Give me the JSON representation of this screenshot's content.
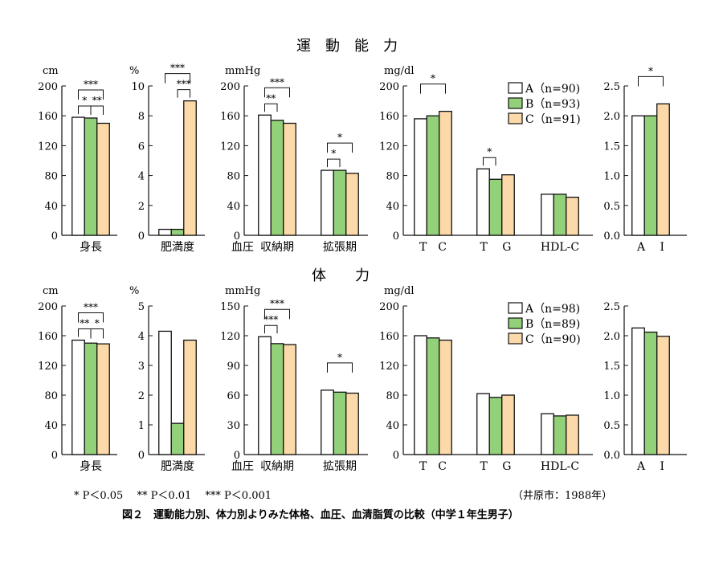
{
  "section_titles": [
    "運　動　能　力",
    "体　　力"
  ],
  "footnote": "*  P＜0.05　  **  P＜0.01　  ***  P＜0.001",
  "source": "（井原市：1988年）",
  "caption": "図２　運動能力別、体力別よりみた体格、血圧、血清脂質の比較（中学１年生男子）",
  "colors": {
    "A": "#ffffff",
    "B": "#93d07a",
    "C": "#fcd9a8",
    "stroke": "#111111"
  },
  "chart_data": [
    {
      "type": "bar",
      "row": 0,
      "unit": "cm",
      "ylim": [
        0,
        200
      ],
      "ticks": [
        "0",
        "40",
        "80",
        "120",
        "160",
        "200"
      ],
      "groups": [
        {
          "label": "身長",
          "values": [
            158,
            157,
            150
          ]
        }
      ],
      "significance": [
        {
          "group": 0,
          "from": 0,
          "to": 2,
          "label": "***"
        },
        {
          "group": 0,
          "from": 0,
          "to": 1,
          "label": "*"
        },
        {
          "group": 0,
          "from": 1,
          "to": 2,
          "label": "**"
        }
      ]
    },
    {
      "type": "bar",
      "row": 0,
      "unit": "%",
      "ylim": [
        0,
        10
      ],
      "ticks": [
        "0",
        "2",
        "4",
        "6",
        "8",
        "10"
      ],
      "groups": [
        {
          "label": "肥満度",
          "values": [
            0.4,
            0.4,
            9.0
          ]
        }
      ],
      "significance": [
        {
          "group": 0,
          "from": 0,
          "to": 2,
          "label": "***"
        },
        {
          "group": 0,
          "from": 1,
          "to": 2,
          "label": "***"
        }
      ]
    },
    {
      "type": "bar",
      "row": 0,
      "unit": "mmHg",
      "ylim": [
        0,
        200
      ],
      "ticks": [
        "0",
        "40",
        "80",
        "120",
        "160",
        "200"
      ],
      "prefix": "血圧",
      "groups": [
        {
          "label": "収納期",
          "values": [
            161,
            154,
            150
          ]
        },
        {
          "label": "拡張期",
          "values": [
            87,
            87,
            83
          ]
        }
      ],
      "significance": [
        {
          "group": 0,
          "from": 0,
          "to": 2,
          "label": "***"
        },
        {
          "group": 0,
          "from": 0,
          "to": 1,
          "label": "**"
        },
        {
          "group": 1,
          "from": 0,
          "to": 2,
          "label": "*"
        },
        {
          "group": 1,
          "from": 0,
          "to": 1,
          "label": "*"
        }
      ]
    },
    {
      "type": "bar",
      "row": 0,
      "unit": "mg/dl",
      "ylim": [
        0,
        200
      ],
      "ticks": [
        "0",
        "40",
        "80",
        "120",
        "160",
        "200"
      ],
      "legend": [
        "A（n=90)",
        "B（n=93)",
        "C（n=91)"
      ],
      "groups": [
        {
          "label": "T　C",
          "values": [
            156,
            160,
            166
          ]
        },
        {
          "label": "T　 G",
          "values": [
            89,
            75,
            81
          ]
        },
        {
          "label": "HDL-C",
          "values": [
            55,
            55,
            51
          ]
        }
      ],
      "significance": [
        {
          "group": 0,
          "from": 0,
          "to": 2,
          "label": "*"
        },
        {
          "group": 1,
          "from": 0,
          "to": 1,
          "label": "*"
        }
      ]
    },
    {
      "type": "bar",
      "row": 0,
      "unit": "",
      "ylim": [
        0,
        2.5
      ],
      "ticks": [
        "0.0",
        "0.5",
        "1.0",
        "1.5",
        "2.0",
        "2.5"
      ],
      "groups": [
        {
          "label": "A　 I",
          "values": [
            2.0,
            2.0,
            2.2
          ]
        }
      ],
      "significance": [
        {
          "group": 0,
          "from": 0,
          "to": 2,
          "label": "*"
        }
      ]
    },
    {
      "type": "bar",
      "row": 1,
      "unit": "cm",
      "ylim": [
        0,
        200
      ],
      "ticks": [
        "0",
        "40",
        "80",
        "120",
        "160",
        "200"
      ],
      "groups": [
        {
          "label": "身長",
          "values": [
            154,
            150,
            149
          ]
        }
      ],
      "significance": [
        {
          "group": 0,
          "from": 0,
          "to": 2,
          "label": "***"
        },
        {
          "group": 0,
          "from": 0,
          "to": 1,
          "label": "**"
        },
        {
          "group": 0,
          "from": 1,
          "to": 2,
          "label": "*"
        }
      ]
    },
    {
      "type": "bar",
      "row": 1,
      "unit": "%",
      "ylim": [
        0,
        5
      ],
      "ticks": [
        "0",
        "1",
        "2",
        "3",
        "4",
        "5"
      ],
      "groups": [
        {
          "label": "肥満度",
          "values": [
            4.15,
            1.05,
            3.85
          ]
        }
      ],
      "significance": []
    },
    {
      "type": "bar",
      "row": 1,
      "unit": "mmHg",
      "ylim": [
        0,
        150
      ],
      "ticks": [
        "0",
        "30",
        "60",
        "90",
        "120",
        "150"
      ],
      "prefix": "血圧",
      "groups": [
        {
          "label": "収納期",
          "values": [
            119,
            112,
            111
          ]
        },
        {
          "label": "拡張期",
          "values": [
            65,
            63,
            62
          ]
        }
      ],
      "significance": [
        {
          "group": 0,
          "from": 0,
          "to": 2,
          "label": "***"
        },
        {
          "group": 0,
          "from": 0,
          "to": 1,
          "label": "***"
        },
        {
          "group": 1,
          "from": 0,
          "to": 2,
          "label": "*"
        }
      ]
    },
    {
      "type": "bar",
      "row": 1,
      "unit": "mg/dl",
      "ylim": [
        0,
        200
      ],
      "ticks": [
        "0",
        "40",
        "80",
        "120",
        "160",
        "200"
      ],
      "legend": [
        "A（n=98)",
        "B（n=89)",
        "C（n=90)"
      ],
      "groups": [
        {
          "label": "T　C",
          "values": [
            160,
            157,
            154
          ]
        },
        {
          "label": "T　 G",
          "values": [
            82,
            77,
            80
          ]
        },
        {
          "label": "HDL-C",
          "values": [
            55,
            52,
            53
          ]
        }
      ],
      "significance": []
    },
    {
      "type": "bar",
      "row": 1,
      "unit": "",
      "ylim": [
        0,
        2.5
      ],
      "ticks": [
        "0.0",
        "0.5",
        "1.0",
        "1.5",
        "2.0",
        "2.5"
      ],
      "groups": [
        {
          "label": "A　 I",
          "values": [
            2.13,
            2.06,
            1.99
          ]
        }
      ],
      "significance": []
    }
  ]
}
